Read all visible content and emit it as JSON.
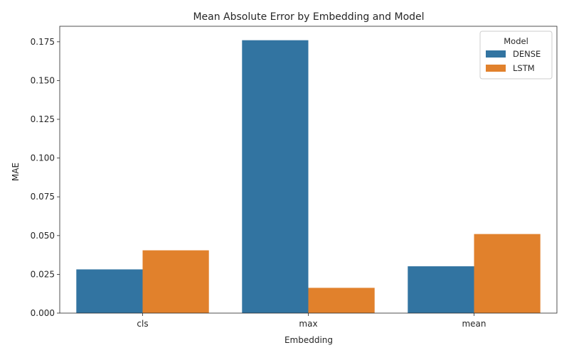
{
  "chart_data": {
    "type": "bar",
    "title": "Mean Absolute Error by Embedding and Model",
    "xlabel": "Embedding",
    "ylabel": "MAE",
    "categories": [
      "cls",
      "max",
      "mean"
    ],
    "series": [
      {
        "name": "DENSE",
        "values": [
          0.0282,
          0.176,
          0.0302
        ],
        "color": "#3274a1"
      },
      {
        "name": "LSTM",
        "values": [
          0.0405,
          0.0163,
          0.051
        ],
        "color": "#e1812c"
      }
    ],
    "ylim": [
      0,
      0.185
    ],
    "yticks": [
      "0.000",
      "0.025",
      "0.050",
      "0.075",
      "0.100",
      "0.125",
      "0.150",
      "0.175"
    ],
    "grid": false,
    "legend": {
      "title": "Model",
      "placement": "top-right"
    }
  }
}
